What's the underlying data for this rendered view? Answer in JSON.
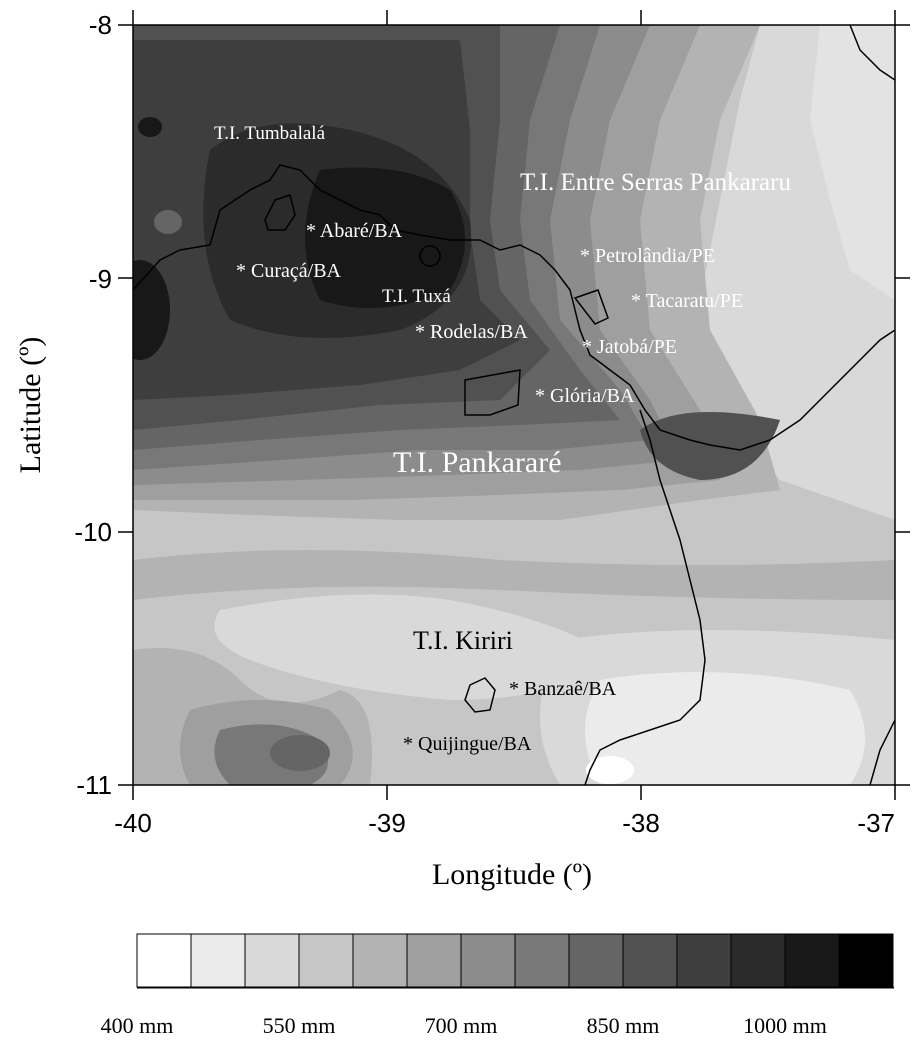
{
  "map": {
    "x_axis": {
      "title": "Longitude (º)",
      "ticks": [
        "-40",
        "-39",
        "-38",
        "-37"
      ]
    },
    "y_axis": {
      "title": "Latitude (º)",
      "ticks": [
        "-8",
        "-9",
        "-10",
        "-11"
      ]
    },
    "extent": {
      "lon": [
        -40,
        -37
      ],
      "lat": [
        -11,
        -8
      ]
    },
    "contour_style": "filled, grayscale"
  },
  "indigenous_lands": [
    {
      "key": "tumbalala",
      "label": "T.I. Tumbalalá"
    },
    {
      "key": "entre_serras",
      "label": "T.I. Entre Serras Pankararu"
    },
    {
      "key": "tuxa",
      "label": "T.I. Tuxá"
    },
    {
      "key": "pankarare",
      "label": "T.I. Pankararé"
    },
    {
      "key": "kiriri",
      "label": "T.I. Kiriri"
    }
  ],
  "cities": [
    {
      "key": "abare",
      "label": "* Abaré/BA"
    },
    {
      "key": "curaca",
      "label": "* Curaçá/BA"
    },
    {
      "key": "rodelas",
      "label": "* Rodelas/BA"
    },
    {
      "key": "petrolandia",
      "label": "* Petrolândia/PE"
    },
    {
      "key": "tacaratu",
      "label": "* Tacaratu/PE"
    },
    {
      "key": "jatoba",
      "label": "* Jatobá/PE"
    },
    {
      "key": "gloria",
      "label": "* Glória/BA"
    },
    {
      "key": "banzae",
      "label": "* Banzaê/BA"
    },
    {
      "key": "quijingue",
      "label": "* Quijingue/BA"
    }
  ],
  "legend": {
    "labels": [
      "400 mm",
      "550 mm",
      "700 mm",
      "850 mm",
      "1000 mm"
    ],
    "colors": [
      "#ffffff",
      "#ebebeb",
      "#d9d9d9",
      "#c6c6c6",
      "#b3b3b3",
      "#9f9f9f",
      "#8c8c8c",
      "#787878",
      "#656565",
      "#515151",
      "#3e3e3e",
      "#2b2b2b",
      "#181818",
      "#000000"
    ]
  }
}
